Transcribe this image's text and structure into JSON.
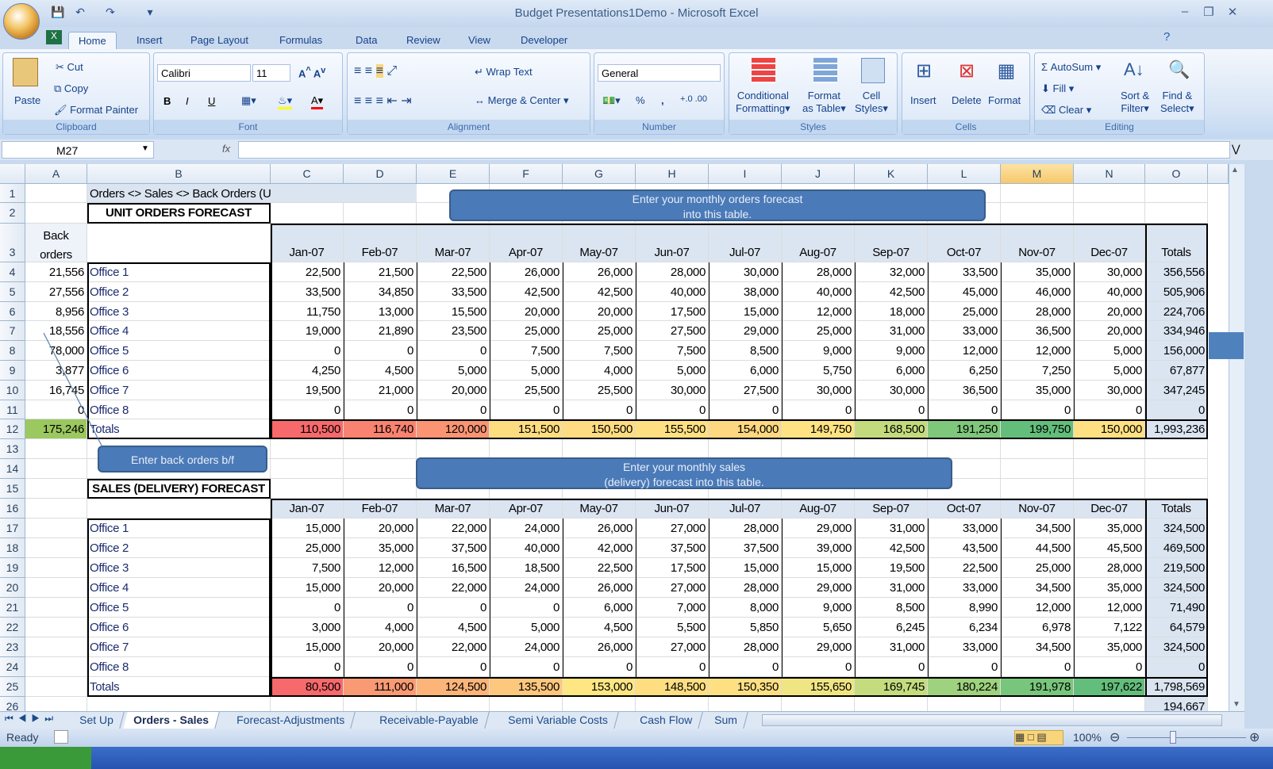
{
  "window": {
    "title": "Budget Presentations1Demo - Microsoft Excel"
  },
  "ribbon_tabs": [
    "Home",
    "Insert",
    "Page Layout",
    "Formulas",
    "Data",
    "Review",
    "View",
    "Developer"
  ],
  "active_tab": "Home",
  "clipboard": {
    "label": "Clipboard",
    "paste": "Paste",
    "cut": "Cut",
    "copy": "Copy",
    "format_painter": "Format Painter"
  },
  "font": {
    "label": "Font",
    "name": "Calibri",
    "size": "11",
    "bold": "B",
    "italic": "I",
    "underline": "U"
  },
  "alignment": {
    "label": "Alignment",
    "wrap": "Wrap Text",
    "merge": "Merge & Center"
  },
  "number": {
    "label": "Number",
    "format": "General",
    "percent": "%",
    "comma": ","
  },
  "styles": {
    "label": "Styles",
    "conditional": [
      "Conditional",
      "Formatting"
    ],
    "table": [
      "Format",
      "as Table"
    ],
    "cell": [
      "Cell",
      "Styles"
    ]
  },
  "cells": {
    "label": "Cells",
    "insert": "Insert",
    "delete": "Delete",
    "format": "Format"
  },
  "editing": {
    "label": "Editing",
    "autosum": "AutoSum",
    "fill": "Fill",
    "clear": "Clear",
    "sort": [
      "Sort &",
      "Filter"
    ],
    "find": [
      "Find &",
      "Select"
    ]
  },
  "formula_bar": {
    "name_box": "M27",
    "fx": "fx",
    "value": ""
  },
  "columns": [
    "A",
    "B",
    "C",
    "D",
    "E",
    "F",
    "G",
    "H",
    "I",
    "J",
    "K",
    "L",
    "M",
    "N",
    "O"
  ],
  "selected_column": "M",
  "sheet": {
    "A3": "Back\norders",
    "B1": "Orders <> Sales <> Back Orders (Units)",
    "B2": "UNIT ORDERS FORECAST",
    "C3": "Jan-07",
    "D3": "Feb-07",
    "E3": "Mar-07",
    "F3": "Apr-07",
    "G3": "May-07",
    "H3": "Jun-07",
    "I3": "Jul-07",
    "J3": "Aug-07",
    "K3": "Sep-07",
    "L3": "Oct-07",
    "M3": "Nov-07",
    "N3": "Dec-07",
    "O3": "Totals",
    "orders": [
      [
        "21,556",
        "Office 1",
        "22,500",
        "21,500",
        "22,500",
        "26,000",
        "26,000",
        "28,000",
        "30,000",
        "28,000",
        "32,000",
        "33,500",
        "35,000",
        "30,000",
        "356,556"
      ],
      [
        "27,556",
        "Office 2",
        "33,500",
        "34,850",
        "33,500",
        "42,500",
        "42,500",
        "40,000",
        "38,000",
        "40,000",
        "42,500",
        "45,000",
        "46,000",
        "40,000",
        "505,906"
      ],
      [
        "8,956",
        "Office 3",
        "11,750",
        "13,000",
        "15,500",
        "20,000",
        "20,000",
        "17,500",
        "15,000",
        "12,000",
        "18,000",
        "25,000",
        "28,000",
        "20,000",
        "224,706"
      ],
      [
        "18,556",
        "Office 4",
        "19,000",
        "21,890",
        "23,500",
        "25,000",
        "25,000",
        "27,500",
        "29,000",
        "25,000",
        "31,000",
        "33,000",
        "36,500",
        "20,000",
        "334,946"
      ],
      [
        "78,000",
        "Office 5",
        "0",
        "0",
        "0",
        "7,500",
        "7,500",
        "7,500",
        "8,500",
        "9,000",
        "9,000",
        "12,000",
        "12,000",
        "5,000",
        "156,000"
      ],
      [
        "3,877",
        "Office 6",
        "4,250",
        "4,500",
        "5,000",
        "5,000",
        "4,000",
        "5,000",
        "6,000",
        "5,750",
        "6,000",
        "6,250",
        "7,250",
        "5,000",
        "67,877"
      ],
      [
        "16,745",
        "Office 7",
        "19,500",
        "21,000",
        "20,000",
        "25,500",
        "25,500",
        "30,000",
        "27,500",
        "30,000",
        "30,000",
        "36,500",
        "35,000",
        "30,000",
        "347,245"
      ],
      [
        "0",
        "Office 8",
        "0",
        "0",
        "0",
        "0",
        "0",
        "0",
        "0",
        "0",
        "0",
        "0",
        "0",
        "0",
        "0"
      ],
      [
        "175,246",
        "Totals",
        "110,500",
        "116,740",
        "120,000",
        "151,500",
        "150,500",
        "155,500",
        "154,000",
        "149,750",
        "168,500",
        "191,250",
        "199,750",
        "150,000",
        "1,993,236"
      ]
    ],
    "orders_total_colors": [
      "#9bc85f",
      "",
      "#f8696b",
      "#f98370",
      "#fa9473",
      "#fedd81",
      "#fedc81",
      "#fee082",
      "#fed880",
      "#ffe383",
      "#c4db7d",
      "#7fc77b",
      "#63be7b",
      "#fee082",
      ""
    ],
    "B15": "SALES (DELIVERY) FORECAST",
    "sales_header": [
      "",
      "",
      "Jan-07",
      "Feb-07",
      "Mar-07",
      "Apr-07",
      "May-07",
      "Jun-07",
      "Jul-07",
      "Aug-07",
      "Sep-07",
      "Oct-07",
      "Nov-07",
      "Dec-07",
      "Totals"
    ],
    "sales": [
      [
        "",
        "Office 1",
        "15,000",
        "20,000",
        "22,000",
        "24,000",
        "26,000",
        "27,000",
        "28,000",
        "29,000",
        "31,000",
        "33,000",
        "34,500",
        "35,000",
        "324,500"
      ],
      [
        "",
        "Office 2",
        "25,000",
        "35,000",
        "37,500",
        "40,000",
        "42,000",
        "37,500",
        "37,500",
        "39,000",
        "42,500",
        "43,500",
        "44,500",
        "45,500",
        "469,500"
      ],
      [
        "",
        "Office 3",
        "7,500",
        "12,000",
        "16,500",
        "18,500",
        "22,500",
        "17,500",
        "15,000",
        "15,000",
        "19,500",
        "22,500",
        "25,000",
        "28,000",
        "219,500"
      ],
      [
        "",
        "Office 4",
        "15,000",
        "20,000",
        "22,000",
        "24,000",
        "26,000",
        "27,000",
        "28,000",
        "29,000",
        "31,000",
        "33,000",
        "34,500",
        "35,000",
        "324,500"
      ],
      [
        "",
        "Office 5",
        "0",
        "0",
        "0",
        "0",
        "6,000",
        "7,000",
        "8,000",
        "9,000",
        "8,500",
        "8,990",
        "12,000",
        "12,000",
        "71,490"
      ],
      [
        "",
        "Office 6",
        "3,000",
        "4,000",
        "4,500",
        "5,000",
        "4,500",
        "5,500",
        "5,850",
        "5,650",
        "6,245",
        "6,234",
        "6,978",
        "7,122",
        "64,579"
      ],
      [
        "",
        "Office 7",
        "15,000",
        "20,000",
        "22,000",
        "24,000",
        "26,000",
        "27,000",
        "28,000",
        "29,000",
        "31,000",
        "33,000",
        "34,500",
        "35,000",
        "324,500"
      ],
      [
        "",
        "Office 8",
        "0",
        "0",
        "0",
        "0",
        "0",
        "0",
        "0",
        "0",
        "0",
        "0",
        "0",
        "0",
        "0"
      ],
      [
        "",
        "Totals",
        "80,500",
        "111,000",
        "124,500",
        "135,500",
        "153,000",
        "148,500",
        "150,350",
        "155,650",
        "169,745",
        "180,224",
        "191,978",
        "197,622",
        "1,798,569"
      ]
    ],
    "sales_total_colors": [
      "",
      "",
      "#f8696b",
      "#fa9a74",
      "#fcb479",
      "#fdc77d",
      "#fee683",
      "#fede81",
      "#fee082",
      "#f0e583",
      "#c5dc7e",
      "#9ed27e",
      "#78c67c",
      "#63be7b",
      ""
    ],
    "O26": "194,667"
  },
  "callouts": {
    "orders": [
      "Enter your monthly  orders forecast",
      "into this table."
    ],
    "back_orders": "Enter back orders b/f",
    "sales": [
      "Enter your monthly sales",
      "(delivery) forecast into this table."
    ]
  },
  "sheet_tabs": [
    "Set Up",
    "Orders - Sales",
    "Forecast-Adjustments",
    "Receivable-Payable",
    "Semi Variable Costs",
    "Cash Flow",
    "Sum"
  ],
  "active_sheet": "Orders - Sales",
  "status": {
    "ready": "Ready",
    "zoom": "100%"
  }
}
